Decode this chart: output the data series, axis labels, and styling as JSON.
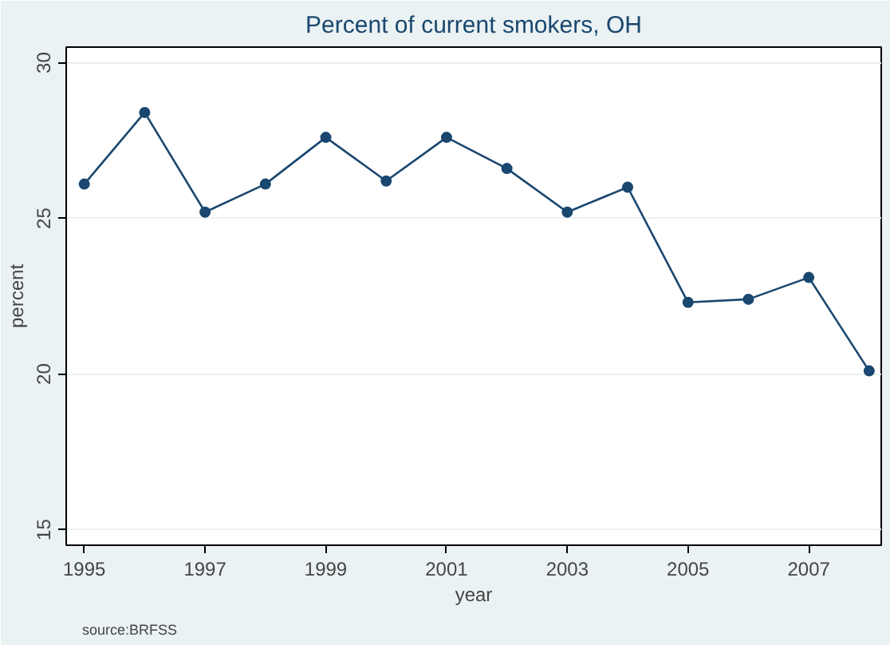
{
  "chart_data": {
    "type": "line",
    "title": "Percent of current smokers, OH",
    "xlabel": "year",
    "ylabel": "percent",
    "x": [
      1995,
      1996,
      1997,
      1998,
      1999,
      2000,
      2001,
      2002,
      2003,
      2004,
      2005,
      2006,
      2007,
      2008
    ],
    "series": [
      {
        "color": "#1a476f",
        "values": [
          26.1,
          28.4,
          25.2,
          26.1,
          27.6,
          26.2,
          27.6,
          26.6,
          25.2,
          26.0,
          22.3,
          22.4,
          23.1,
          20.1
        ]
      }
    ],
    "xlim": [
      1994.7,
      2008.2
    ],
    "ylim": [
      14.5,
      30.5
    ],
    "xticks": [
      1995,
      1997,
      1999,
      2001,
      2003,
      2005,
      2007
    ],
    "yticks": [
      15,
      20,
      25,
      30
    ],
    "grid": "y",
    "marker": "circle",
    "line_style": "solid",
    "annotations": [
      "source:BRFSS"
    ]
  }
}
